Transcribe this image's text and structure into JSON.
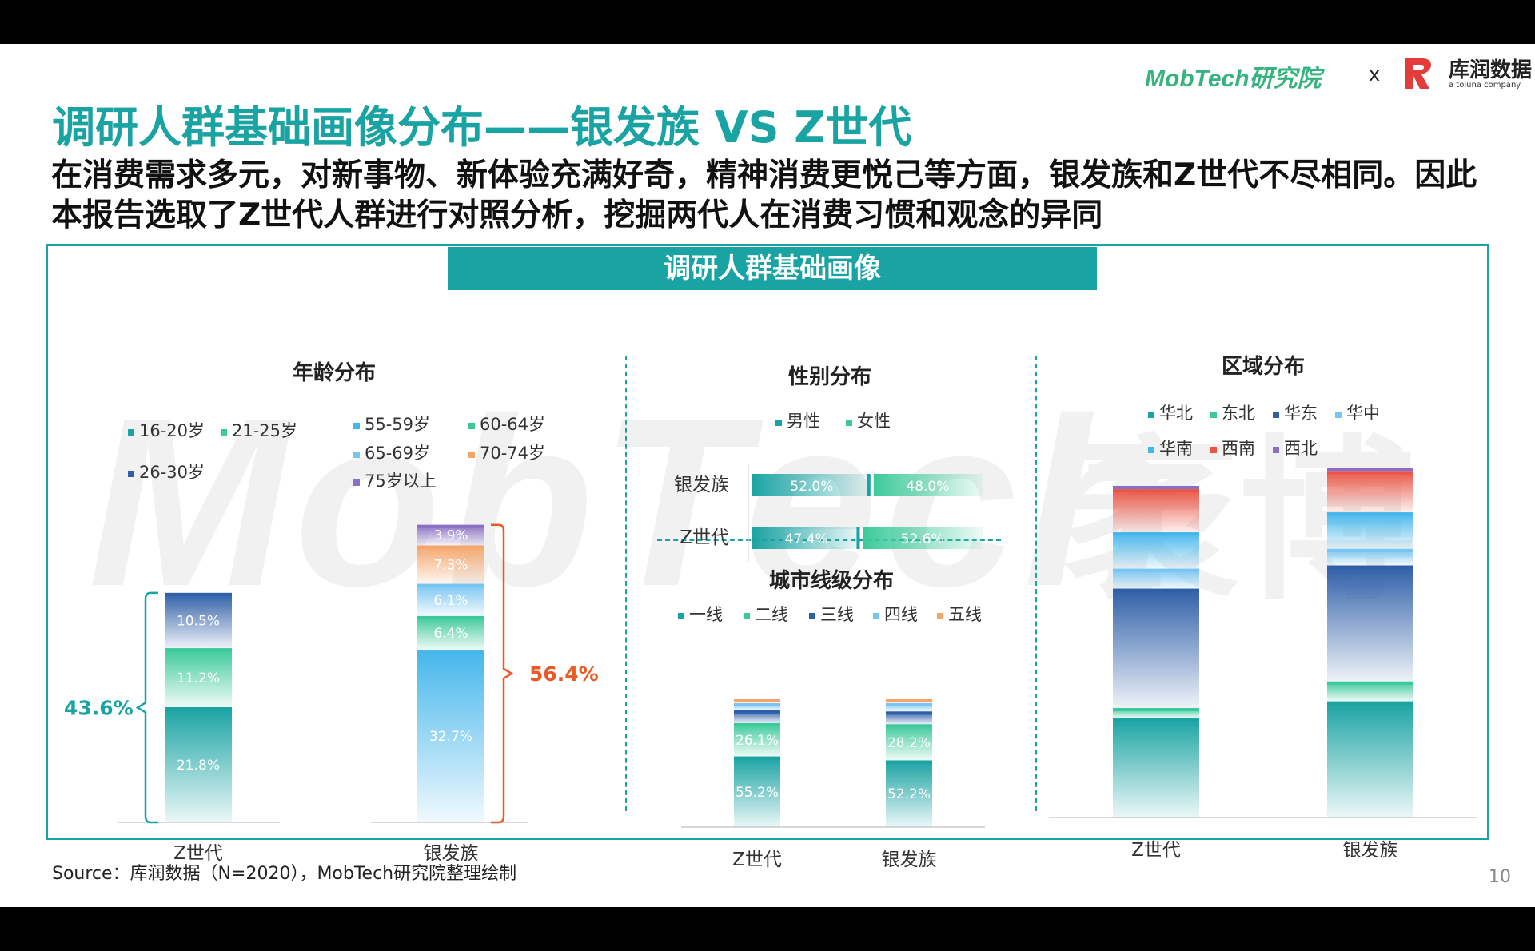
{
  "header": {
    "logo_mobtech": "MobTech研究院",
    "logo_separator": "x",
    "logo_partner": "库润数据",
    "logo_partner_sub": "a toluna company",
    "title": "调研人群基础画像分布——银发族 VS Z世代",
    "subtitle": "在消费需求多元，对新事物、新体验充满好奇，精神消费更悦己等方面，银发族和Z世代不尽相同。因此本报告选取了Z世代人群进行对照分析，挖掘两代人在消费习惯和观念的异同"
  },
  "banner": "调研人群基础画像",
  "footer": {
    "source": "Source：库润数据（N=2020），MobTech研究院整理绘制",
    "page": "10"
  },
  "colors": {
    "teal": "#1aa3a3",
    "green": "#3cc99a",
    "navy": "#2f5fa8",
    "sky": "#45b6ec",
    "lightblue": "#77c5f2",
    "orange": "#f5a56a",
    "purple": "#8a6fc4",
    "red": "#ea5645",
    "accent_orange": "#ea5a26"
  },
  "chart_data": [
    {
      "type": "bar",
      "stacked": true,
      "title": "年龄分布",
      "categories": [
        "Z世代",
        "银发族"
      ],
      "series": [
        {
          "name": "16-20岁",
          "values": [
            21.8,
            null
          ],
          "color": "#1aa3a3"
        },
        {
          "name": "21-25岁",
          "values": [
            11.2,
            null
          ],
          "color": "#3cc99a"
        },
        {
          "name": "26-30岁",
          "values": [
            10.5,
            null
          ],
          "color": "#2f5fa8"
        },
        {
          "name": "55-59岁",
          "values": [
            null,
            32.7
          ],
          "color": "#45b6ec"
        },
        {
          "name": "60-64岁",
          "values": [
            null,
            6.4
          ],
          "color": "#3cc99a"
        },
        {
          "name": "65-69岁",
          "values": [
            null,
            6.1
          ],
          "color": "#77c5f2"
        },
        {
          "name": "70-74岁",
          "values": [
            null,
            7.3
          ],
          "color": "#f5a56a"
        },
        {
          "name": "75岁以上",
          "values": [
            null,
            3.9
          ],
          "color": "#8a6fc4"
        }
      ],
      "value_labels": [
        [
          "21.8%",
          "11.2%",
          "10.5%"
        ],
        [
          "32.7%",
          "6.4%",
          "6.1%",
          "7.3%",
          "3.9%"
        ]
      ],
      "annotations": [
        "43.6%",
        "56.4%"
      ]
    },
    {
      "type": "bar",
      "stacked": true,
      "horizontal": true,
      "title": "性别分布",
      "categories": [
        "银发族",
        "Z世代"
      ],
      "series": [
        {
          "name": "男性",
          "values": [
            52.0,
            47.4
          ],
          "color": "#1aa3a3"
        },
        {
          "name": "女性",
          "values": [
            48.0,
            52.6
          ],
          "color": "#3cc99a"
        }
      ],
      "value_labels": [
        [
          "52.0%",
          "48.0%"
        ],
        [
          "47.4%",
          "52.6%"
        ]
      ]
    },
    {
      "type": "bar",
      "stacked": true,
      "title": "城市线级分布",
      "categories": [
        "Z世代",
        "银发族"
      ],
      "series": [
        {
          "name": "一线",
          "values": [
            55.2,
            52.2
          ],
          "color": "#1aa3a3"
        },
        {
          "name": "二线",
          "values": [
            26.1,
            28.2
          ],
          "color": "#3cc99a"
        },
        {
          "name": "三线",
          "values": [
            10.0,
            10.0
          ],
          "color": "#2f5fa8"
        },
        {
          "name": "四线",
          "values": [
            5.5,
            6.5
          ],
          "color": "#77c5f2"
        },
        {
          "name": "五线",
          "values": [
            3.2,
            3.1
          ],
          "color": "#f5a56a"
        }
      ],
      "value_labels": [
        [
          "55.2%",
          "26.1%",
          "",
          "",
          ""
        ],
        [
          "52.2%",
          "28.2%",
          "",
          "",
          ""
        ]
      ]
    },
    {
      "type": "bar",
      "stacked": true,
      "title": "区域分布",
      "categories": [
        "Z世代",
        "银发族"
      ],
      "series": [
        {
          "name": "华北",
          "values": [
            30.0,
            35.0
          ],
          "color": "#1aa3a3"
        },
        {
          "name": "东北",
          "values": [
            3.0,
            6.0
          ],
          "color": "#3cc99a"
        },
        {
          "name": "华东",
          "values": [
            36.0,
            35.0
          ],
          "color": "#2f5fa8"
        },
        {
          "name": "华中",
          "values": [
            6.0,
            5.0
          ],
          "color": "#77c5f2"
        },
        {
          "name": "华南",
          "values": [
            11.0,
            11.0
          ],
          "color": "#45b6ec"
        },
        {
          "name": "西南",
          "values": [
            13.0,
            12.5
          ],
          "color": "#ea5645"
        },
        {
          "name": "西北",
          "values": [
            1.0,
            1.0
          ],
          "color": "#8a6fc4"
        }
      ]
    }
  ]
}
